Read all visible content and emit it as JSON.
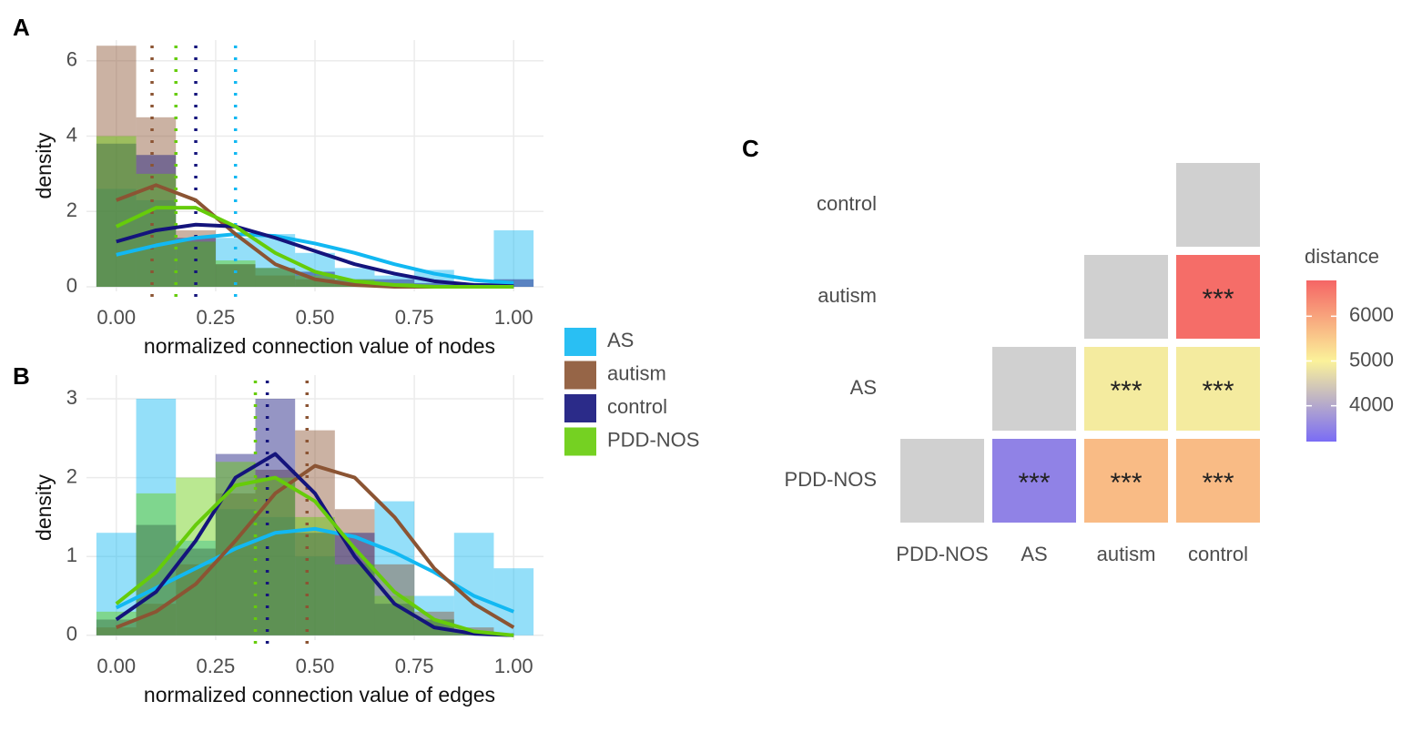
{
  "chart_data": [
    {
      "type": "histogram",
      "panel": "A",
      "xlabel": "normalized connection value of nodes",
      "ylabel": "density",
      "bins": [
        -0.05,
        0.05,
        0.15,
        0.25,
        0.35,
        0.45,
        0.55,
        0.65,
        0.75,
        0.85,
        0.95,
        1.05
      ],
      "curve_x": [
        0,
        0.1,
        0.2,
        0.3,
        0.4,
        0.5,
        0.6,
        0.7,
        0.8,
        0.9,
        1.0
      ],
      "series": [
        {
          "name": "AS",
          "color": "#12b8f2",
          "values": [
            2.6,
            2.3,
            1.2,
            1.3,
            1.4,
            0.9,
            0.5,
            0.3,
            0.45,
            0.1,
            1.5
          ],
          "density": [
            0.85,
            1.1,
            1.3,
            1.4,
            1.35,
            1.15,
            0.9,
            0.6,
            0.35,
            0.18,
            0.1
          ],
          "mean": 0.3
        },
        {
          "name": "autism",
          "color": "#8b5433",
          "values": [
            6.4,
            4.5,
            1.5,
            0.6,
            0.3,
            0.2,
            0.1,
            0.05,
            0,
            0,
            0
          ],
          "density": [
            2.3,
            2.7,
            2.3,
            1.4,
            0.6,
            0.2,
            0.05,
            0,
            0,
            0,
            0
          ],
          "mean": 0.09
        },
        {
          "name": "control",
          "color": "#14147c",
          "values": [
            3.8,
            3.5,
            1.3,
            0.6,
            0.5,
            0.4,
            0.2,
            0.2,
            0.1,
            0.1,
            0.2
          ],
          "density": [
            1.2,
            1.5,
            1.65,
            1.6,
            1.3,
            0.95,
            0.6,
            0.35,
            0.15,
            0.05,
            0.02
          ],
          "mean": 0.2
        },
        {
          "name": "PDD-NOS",
          "color": "#66cc0a",
          "values": [
            4.0,
            3.0,
            1.2,
            0.7,
            0.5,
            0.3,
            0.2,
            0.1,
            0,
            0,
            0
          ],
          "density": [
            1.6,
            2.1,
            2.1,
            1.6,
            0.9,
            0.4,
            0.15,
            0.05,
            0,
            0,
            0
          ],
          "mean": 0.15
        }
      ],
      "xlim": [
        -0.075,
        1.075
      ],
      "ylim": [
        -0.12,
        6.55
      ],
      "xticks": [
        {
          "value": 0,
          "label": "0.00"
        },
        {
          "value": 0.25,
          "label": "0.25"
        },
        {
          "value": 0.5,
          "label": "0.50"
        },
        {
          "value": 0.75,
          "label": "0.75"
        },
        {
          "value": 1,
          "label": "1.00"
        }
      ],
      "yticks": [
        0,
        2,
        4,
        6
      ],
      "grid": true,
      "legend": "right"
    },
    {
      "type": "histogram",
      "panel": "B",
      "xlabel": "normalized connection value of edges",
      "ylabel": "density",
      "bins": [
        -0.05,
        0.05,
        0.15,
        0.25,
        0.35,
        0.45,
        0.55,
        0.65,
        0.75,
        0.85,
        0.95,
        1.05
      ],
      "curve_x": [
        0,
        0.1,
        0.2,
        0.3,
        0.4,
        0.5,
        0.6,
        0.7,
        0.8,
        0.9,
        1.0
      ],
      "series": [
        {
          "name": "AS",
          "color": "#12b8f2",
          "values": [
            1.3,
            3.0,
            1.2,
            1.6,
            1.5,
            1.0,
            0.9,
            1.7,
            0.5,
            1.3,
            0.85
          ],
          "density": [
            0.35,
            0.6,
            0.85,
            1.1,
            1.3,
            1.35,
            1.25,
            1.05,
            0.8,
            0.5,
            0.3
          ],
          "mean": null
        },
        {
          "name": "autism",
          "color": "#8b5433",
          "values": [
            0.1,
            0.4,
            0.9,
            1.8,
            2.1,
            2.6,
            1.6,
            0.9,
            0.3,
            0.1,
            0
          ],
          "density": [
            0.1,
            0.3,
            0.65,
            1.2,
            1.8,
            2.15,
            2.0,
            1.5,
            0.85,
            0.4,
            0.1
          ],
          "mean": 0.48
        },
        {
          "name": "control",
          "color": "#14147c",
          "values": [
            0.2,
            1.4,
            1.1,
            2.3,
            3.0,
            1.3,
            1.3,
            0.4,
            0.2,
            0.05,
            0
          ],
          "density": [
            0.2,
            0.55,
            1.2,
            2.0,
            2.3,
            1.8,
            1.0,
            0.4,
            0.1,
            0.02,
            0
          ],
          "mean": 0.38
        },
        {
          "name": "PDD-NOS",
          "color": "#66cc0a",
          "values": [
            0.3,
            1.8,
            2.0,
            2.2,
            2.0,
            1.5,
            0.9,
            0.5,
            0.2,
            0.05,
            0
          ],
          "density": [
            0.4,
            0.8,
            1.4,
            1.9,
            2.0,
            1.7,
            1.1,
            0.55,
            0.2,
            0.05,
            0
          ],
          "mean": 0.35
        }
      ],
      "xlim": [
        -0.075,
        1.075
      ],
      "ylim": [
        -0.06,
        3.3
      ],
      "xticks": [
        {
          "value": 0,
          "label": "0.00"
        },
        {
          "value": 0.25,
          "label": "0.25"
        },
        {
          "value": 0.5,
          "label": "0.50"
        },
        {
          "value": 0.75,
          "label": "0.75"
        },
        {
          "value": 1,
          "label": "1.00"
        }
      ],
      "yticks": [
        0,
        1,
        2,
        3
      ],
      "grid": true
    },
    {
      "type": "heatmap",
      "panel": "C",
      "x": [
        "PDD-NOS",
        "AS",
        "autism",
        "control"
      ],
      "y": [
        "control",
        "autism",
        "AS",
        "PDD-NOS"
      ],
      "values": [
        [
          null,
          null,
          null,
          null
        ],
        [
          null,
          null,
          null,
          6700
        ],
        [
          null,
          null,
          4900,
          4900
        ],
        [
          null,
          3500,
          5700,
          5700
        ]
      ],
      "value_labels": [
        [
          null,
          null,
          null,
          null
        ],
        [
          null,
          null,
          null,
          "***"
        ],
        [
          null,
          null,
          "***",
          "***"
        ],
        [
          null,
          "***",
          "***",
          "***"
        ]
      ],
      "legend_title": "distance",
      "clim": [
        3200,
        6800
      ],
      "cticks": [
        4000,
        5000,
        6000
      ],
      "color_scale": [
        "#7a6cf5",
        "#fbf29a",
        "#f56565"
      ],
      "na_color": "#d0d0d0"
    }
  ]
}
